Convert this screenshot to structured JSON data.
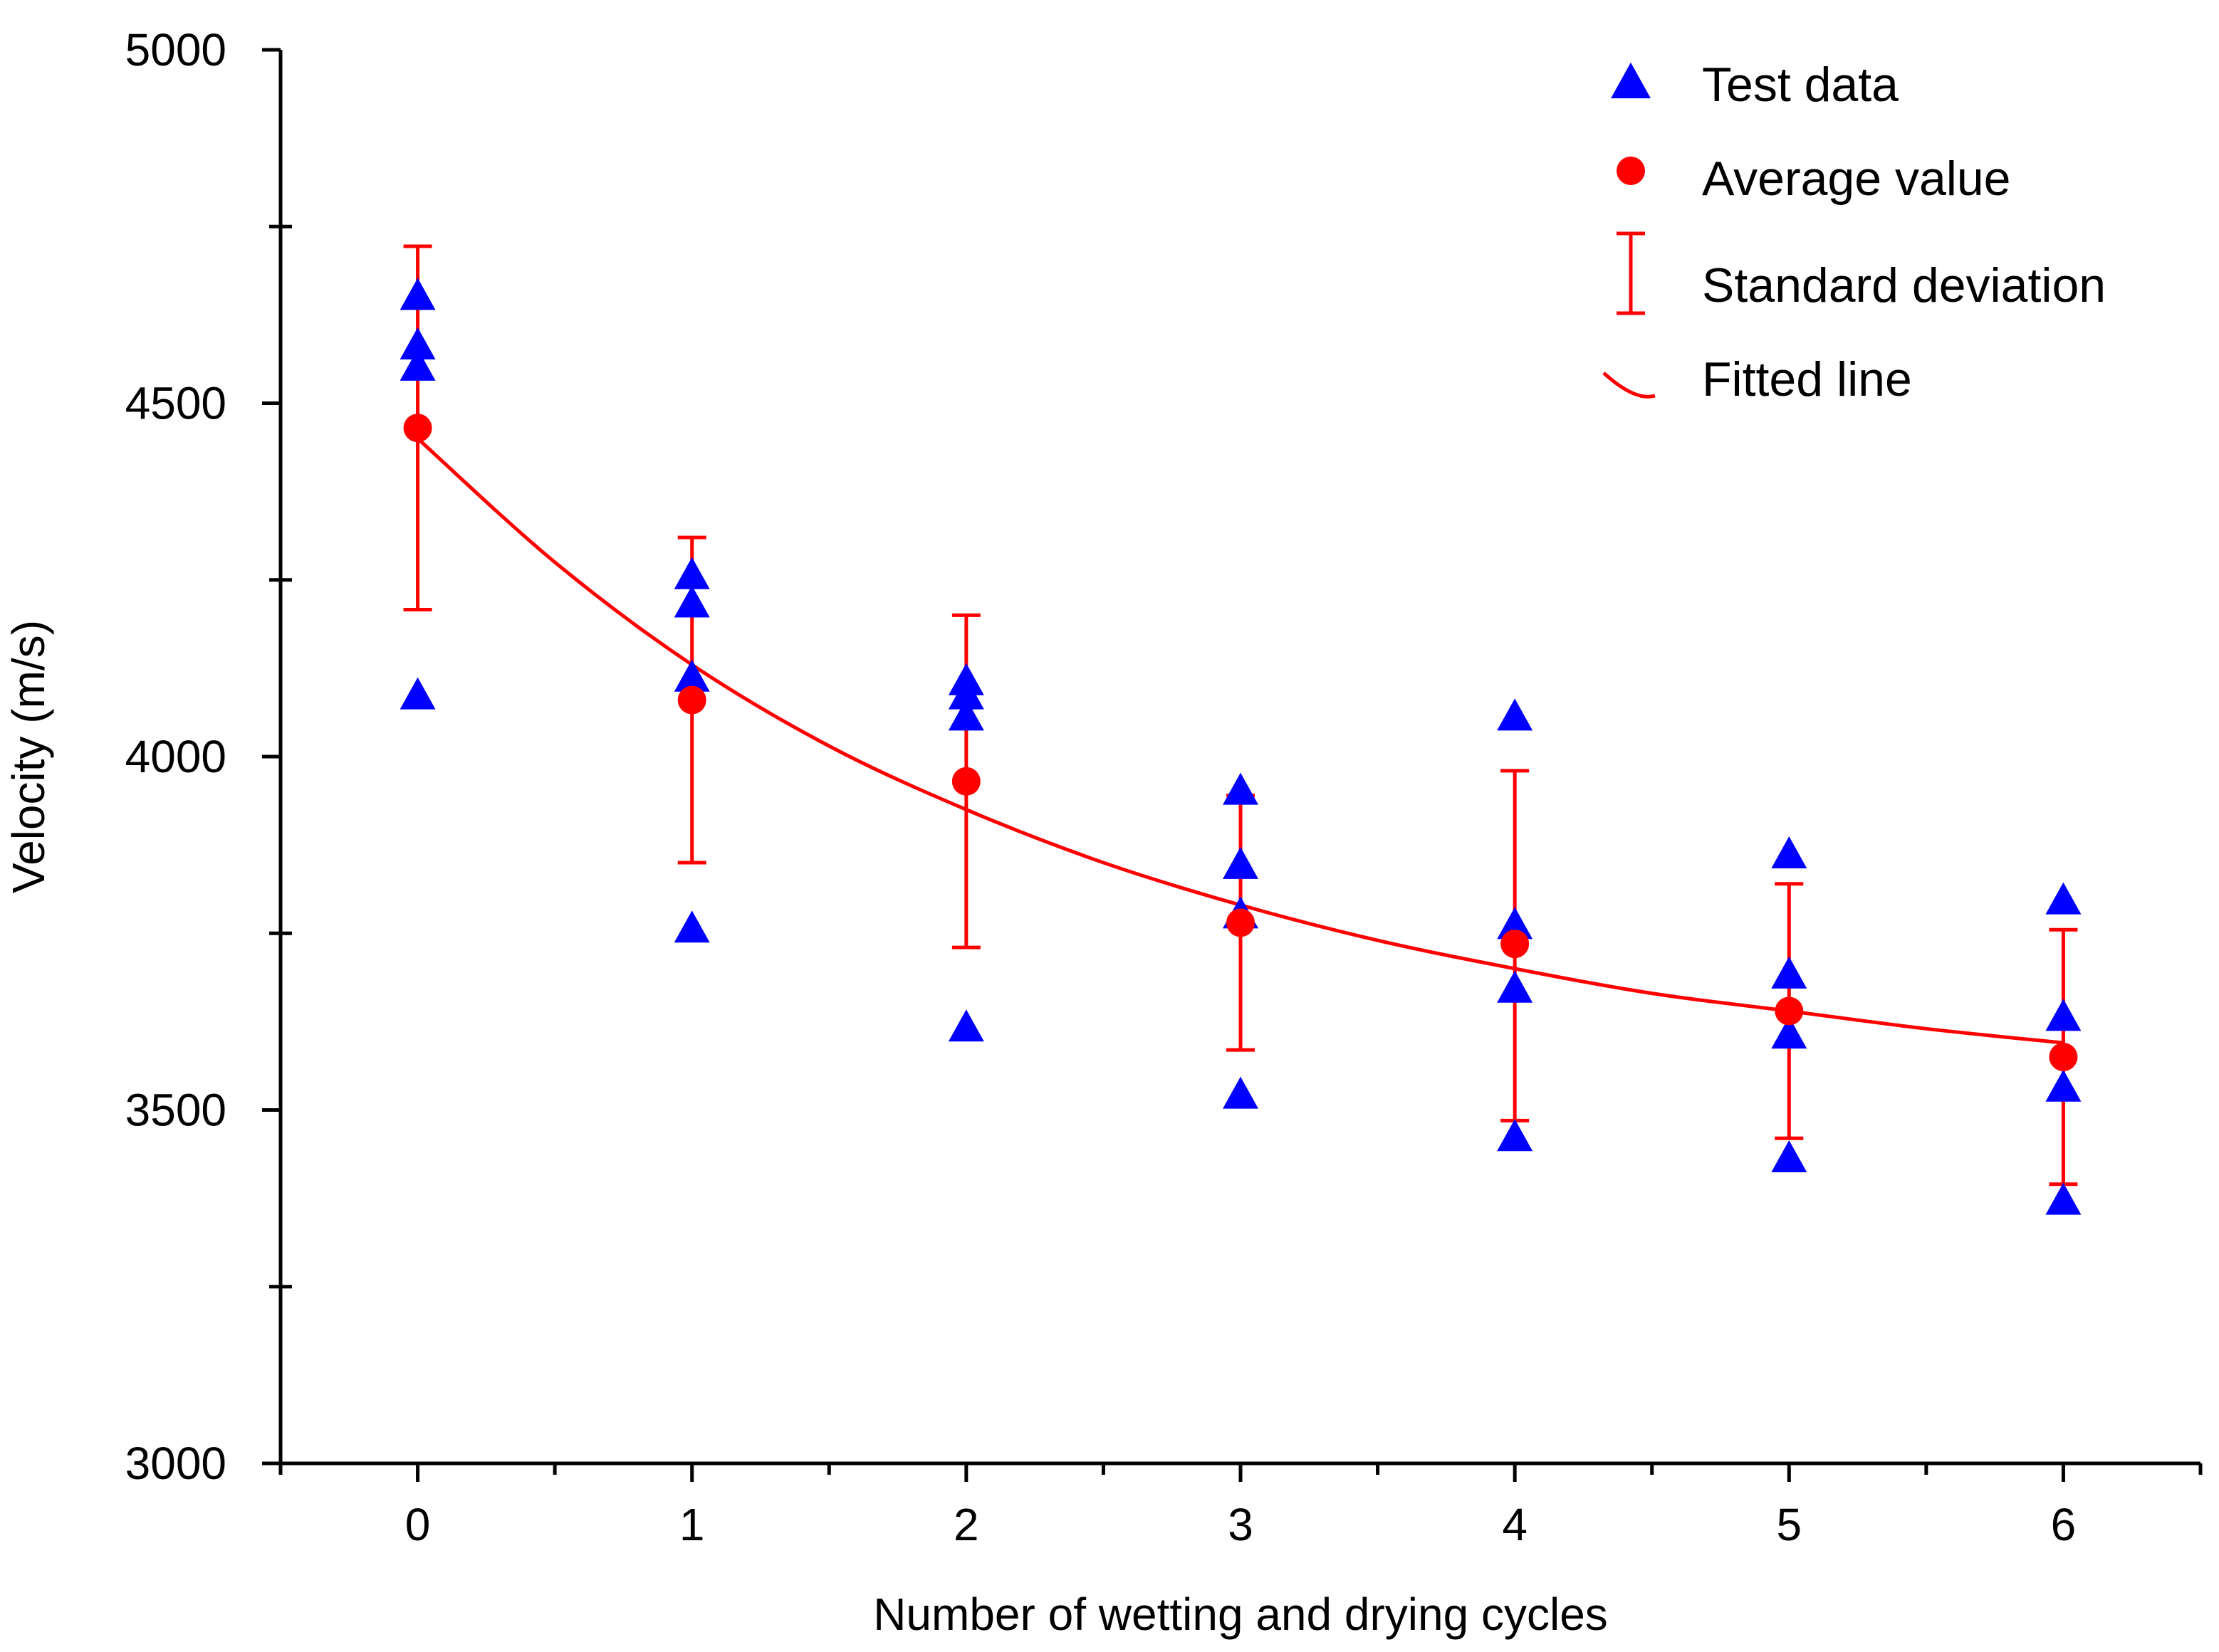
{
  "chart_data": {
    "type": "scatter",
    "title": "",
    "xlabel": "Number of wetting and drying cycles",
    "ylabel": "Velocity (m/s)",
    "xlim": [
      -0.5,
      6.5
    ],
    "ylim": [
      3000,
      5000
    ],
    "x_ticks": [
      "0",
      "1",
      "2",
      "3",
      "4",
      "5",
      "6"
    ],
    "y_ticks": [
      "3000",
      "3500",
      "4000",
      "4500",
      "5000"
    ],
    "y_tick_values": [
      3000,
      3500,
      4000,
      4500,
      5000
    ],
    "y_minor_step": 250,
    "x_minor_step": 0.5,
    "grid": false,
    "legend_position": "top-right",
    "legend": [
      {
        "label": "Test data",
        "marker": "triangle",
        "color": "#0000ff"
      },
      {
        "label": "Average value",
        "marker": "circle",
        "color": "#ff0000"
      },
      {
        "label": "Standard deviation",
        "marker": "errorbar",
        "color": "#ff0000"
      },
      {
        "label": "Fitted line",
        "marker": "line",
        "color": "#ff0000"
      }
    ],
    "test_data": {
      "color": "#0000ff",
      "points": [
        {
          "x": 0,
          "y": 4650
        },
        {
          "x": 0,
          "y": 4580
        },
        {
          "x": 0,
          "y": 4550
        },
        {
          "x": 0,
          "y": 4085
        },
        {
          "x": 1,
          "y": 4255
        },
        {
          "x": 1,
          "y": 4215
        },
        {
          "x": 1,
          "y": 4110
        },
        {
          "x": 1,
          "y": 3755
        },
        {
          "x": 2,
          "y": 4105
        },
        {
          "x": 2,
          "y": 4085
        },
        {
          "x": 2,
          "y": 4055
        },
        {
          "x": 2,
          "y": 3615
        },
        {
          "x": 3,
          "y": 3950
        },
        {
          "x": 3,
          "y": 3845
        },
        {
          "x": 3,
          "y": 3775
        },
        {
          "x": 3,
          "y": 3520
        },
        {
          "x": 4,
          "y": 4055
        },
        {
          "x": 4,
          "y": 3760
        },
        {
          "x": 4,
          "y": 3670
        },
        {
          "x": 4,
          "y": 3460
        },
        {
          "x": 5,
          "y": 3860
        },
        {
          "x": 5,
          "y": 3690
        },
        {
          "x": 5,
          "y": 3605
        },
        {
          "x": 5,
          "y": 3430
        },
        {
          "x": 6,
          "y": 3795
        },
        {
          "x": 6,
          "y": 3630
        },
        {
          "x": 6,
          "y": 3530
        },
        {
          "x": 6,
          "y": 3370
        }
      ]
    },
    "average": {
      "color": "#ff0000",
      "points": [
        {
          "x": 0,
          "y": 4465,
          "sd_low": 4208,
          "sd_high": 4722
        },
        {
          "x": 1,
          "y": 4080,
          "sd_low": 3850,
          "sd_high": 4310
        },
        {
          "x": 2,
          "y": 3965,
          "sd_low": 3730,
          "sd_high": 4200
        },
        {
          "x": 3,
          "y": 3765,
          "sd_low": 3585,
          "sd_high": 3945
        },
        {
          "x": 4,
          "y": 3735,
          "sd_low": 3485,
          "sd_high": 3980
        },
        {
          "x": 5,
          "y": 3640,
          "sd_low": 3460,
          "sd_high": 3820
        },
        {
          "x": 6,
          "y": 3575,
          "sd_low": 3395,
          "sd_high": 3755
        }
      ]
    },
    "fitted_line": {
      "color": "#ff0000",
      "x": [
        0,
        0.5,
        1,
        1.5,
        2,
        2.5,
        3,
        3.5,
        4,
        4.5,
        5,
        5.5,
        6
      ],
      "y": [
        4450,
        4275,
        4130,
        4015,
        3925,
        3850,
        3790,
        3740,
        3700,
        3665,
        3640,
        3615,
        3595
      ]
    }
  }
}
